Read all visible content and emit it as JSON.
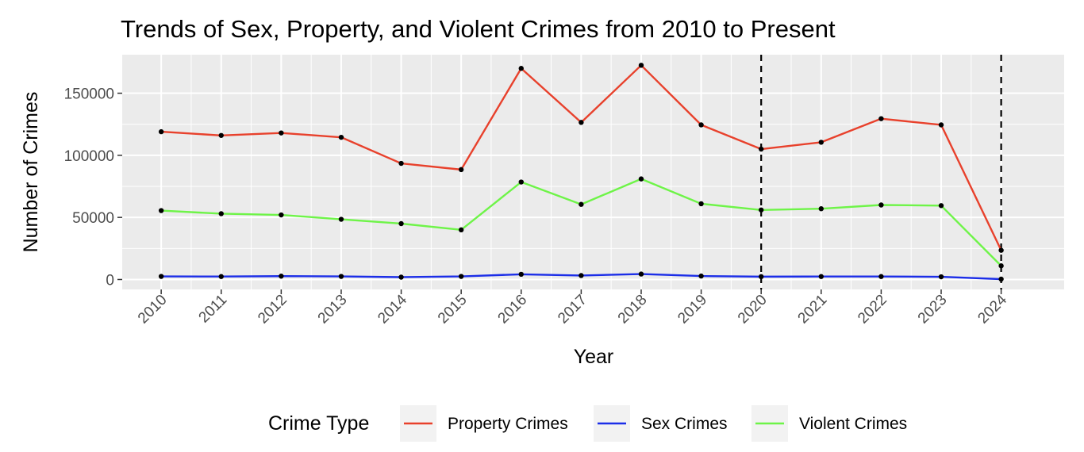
{
  "chart_data": {
    "type": "line",
    "title": "Trends of Sex, Property, and Violent Crimes from 2010 to Present",
    "xlabel": "Year",
    "ylabel": "Number of Crimes",
    "x": [
      2010,
      2011,
      2012,
      2013,
      2014,
      2015,
      2016,
      2017,
      2018,
      2019,
      2020,
      2021,
      2022,
      2023,
      2024
    ],
    "x_tick_labels": [
      "2010",
      "2011",
      "2012",
      "2013",
      "2014",
      "2015",
      "2016",
      "2017",
      "2018",
      "2019",
      "2020",
      "2021",
      "2022",
      "2023",
      "2024"
    ],
    "y_ticks": [
      0,
      50000,
      100000,
      150000
    ],
    "y_tick_labels": [
      "0",
      "50000",
      "100000",
      "150000"
    ],
    "xlim": [
      2009.35,
      2025.05
    ],
    "ylim": [
      -8000,
      181000
    ],
    "grid": true,
    "series": [
      {
        "name": "Property Crimes",
        "color": "#e8412c",
        "values": [
          119000,
          116000,
          118000,
          114500,
          93500,
          88500,
          170000,
          126500,
          172500,
          124500,
          105000,
          110500,
          129500,
          124500,
          23500
        ]
      },
      {
        "name": "Sex Crimes",
        "color": "#1c2ee8",
        "values": [
          2500,
          2400,
          2700,
          2500,
          1900,
          2500,
          4200,
          3200,
          4400,
          2800,
          2300,
          2400,
          2400,
          2200,
          300
        ]
      },
      {
        "name": "Violent Crimes",
        "color": "#6ef448",
        "values": [
          55500,
          53000,
          52000,
          48500,
          45000,
          40000,
          78500,
          60500,
          81000,
          61000,
          56000,
          57000,
          60000,
          59500,
          11000
        ]
      }
    ],
    "vlines": [
      2020,
      2024
    ],
    "point_color": "#000000",
    "legend": {
      "title": "Crime Type",
      "position": "bottom",
      "entries": [
        "Property Crimes",
        "Sex Crimes",
        "Violent Crimes"
      ]
    }
  }
}
